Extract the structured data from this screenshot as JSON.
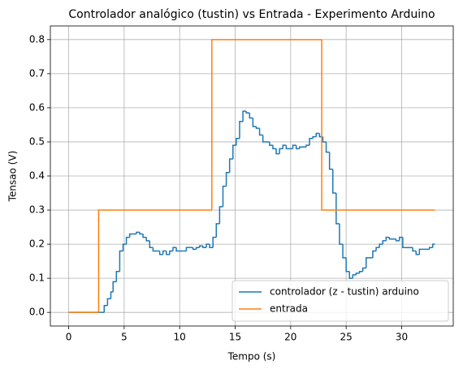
{
  "chart_data": {
    "type": "step",
    "title": "Controlador analógico (tustin) vs Entrada - Experimento Arduino",
    "xlabel": "Tempo (s)",
    "ylabel": "Tensao (V)",
    "xlim": [
      -1.65,
      34.65
    ],
    "ylim": [
      -0.04,
      0.84
    ],
    "xticks": [
      0,
      5,
      10,
      15,
      20,
      25,
      30
    ],
    "yticks": [
      {
        "value": 0,
        "label": "0.0"
      },
      0.1,
      0.2,
      0.3,
      0.4,
      0.5,
      0.6,
      0.7,
      0.8
    ],
    "grid": true,
    "legend": "lower right",
    "series": [
      {
        "name": "controlador (z - tustin) arduino",
        "color": "#1f77b4",
        "x": [
          0,
          2.9,
          3.2,
          3.5,
          3.8,
          4.0,
          4.3,
          4.6,
          4.9,
          5.2,
          5.5,
          6.1,
          6.4,
          6.7,
          7.0,
          7.3,
          7.6,
          8.2,
          8.5,
          8.8,
          9.1,
          9.4,
          9.7,
          10.3,
          10.6,
          11.2,
          11.5,
          11.8,
          12.1,
          12.4,
          12.7,
          13.0,
          13.3,
          13.6,
          13.9,
          14.2,
          14.5,
          14.8,
          15.1,
          15.4,
          15.7,
          16.0,
          16.3,
          16.6,
          16.9,
          17.2,
          17.5,
          18.1,
          18.4,
          18.7,
          19.0,
          19.3,
          19.6,
          20.2,
          20.5,
          20.8,
          21.4,
          21.7,
          22.0,
          22.3,
          22.6,
          22.9,
          23.2,
          23.5,
          23.8,
          24.1,
          24.4,
          24.7,
          25.0,
          25.3,
          25.6,
          25.9,
          26.2,
          26.5,
          26.8,
          27.4,
          27.7,
          28.0,
          28.3,
          28.6,
          28.9,
          29.5,
          29.8,
          30.1,
          30.4,
          31.0,
          31.3,
          31.6,
          32.2,
          32.5,
          32.8,
          33.0
        ],
        "values": [
          0,
          0.0,
          0.02,
          0.04,
          0.06,
          0.09,
          0.12,
          0.18,
          0.2,
          0.22,
          0.23,
          0.235,
          0.23,
          0.22,
          0.21,
          0.19,
          0.18,
          0.17,
          0.18,
          0.17,
          0.18,
          0.19,
          0.18,
          0.18,
          0.19,
          0.185,
          0.19,
          0.195,
          0.19,
          0.2,
          0.19,
          0.22,
          0.26,
          0.31,
          0.37,
          0.41,
          0.45,
          0.49,
          0.51,
          0.56,
          0.59,
          0.585,
          0.57,
          0.545,
          0.54,
          0.52,
          0.5,
          0.49,
          0.48,
          0.465,
          0.48,
          0.49,
          0.48,
          0.49,
          0.48,
          0.485,
          0.49,
          0.51,
          0.515,
          0.525,
          0.515,
          0.5,
          0.47,
          0.42,
          0.35,
          0.26,
          0.2,
          0.16,
          0.12,
          0.1,
          0.11,
          0.115,
          0.12,
          0.13,
          0.16,
          0.18,
          0.19,
          0.2,
          0.21,
          0.22,
          0.215,
          0.21,
          0.22,
          0.19,
          0.19,
          0.18,
          0.17,
          0.185,
          0.185,
          0.19,
          0.2,
          0.2
        ]
      },
      {
        "name": "entrada",
        "color": "#ff7f0e",
        "x": [
          0,
          2.7,
          12.9,
          22.8,
          33
        ],
        "values": [
          0,
          0.3,
          0.8,
          0.3,
          0.3
        ]
      }
    ]
  }
}
